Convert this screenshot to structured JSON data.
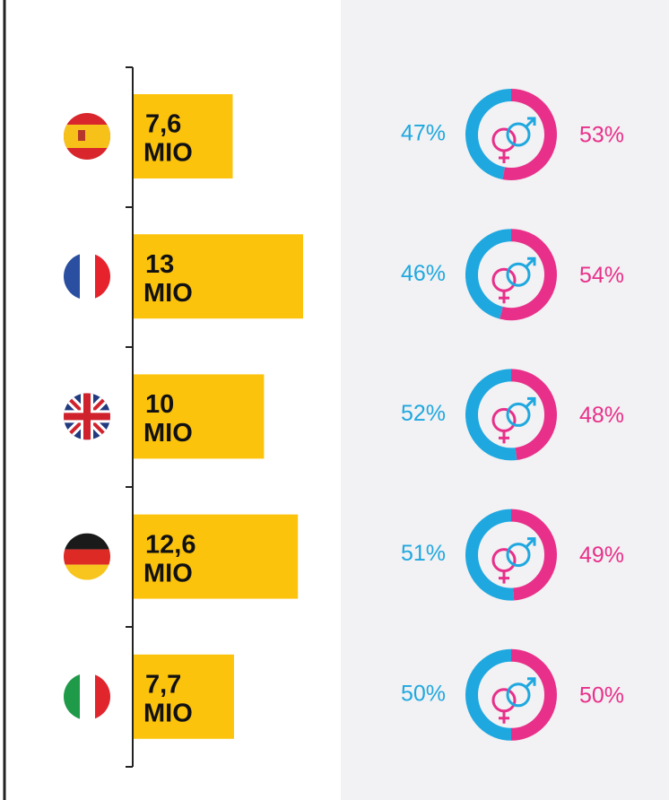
{
  "chart_data": [
    {
      "type": "bar",
      "categories": [
        null,
        null,
        null,
        null,
        null
      ],
      "values": [
        7.6,
        13,
        10,
        12.6,
        7.7
      ],
      "value_labels": [
        "7,6",
        "13",
        "10",
        "12,6",
        "7,7"
      ],
      "unit_labels": [
        "MIO",
        "MIO",
        "MIO",
        "MIO",
        "MIO"
      ],
      "color": "#fcc30d"
    },
    {
      "type": "donut",
      "series": [
        {
          "color": "#1fa8e0",
          "values": [
            47,
            46,
            52,
            51,
            50
          ],
          "value_labels": [
            "47%",
            "46%",
            "52%",
            "51%",
            "50%"
          ]
        },
        {
          "color": "#e8308a",
          "values": [
            53,
            54,
            48,
            49,
            50
          ],
          "value_labels": [
            "53%",
            "54%",
            "48%",
            "49%",
            "50%"
          ]
        }
      ]
    }
  ]
}
